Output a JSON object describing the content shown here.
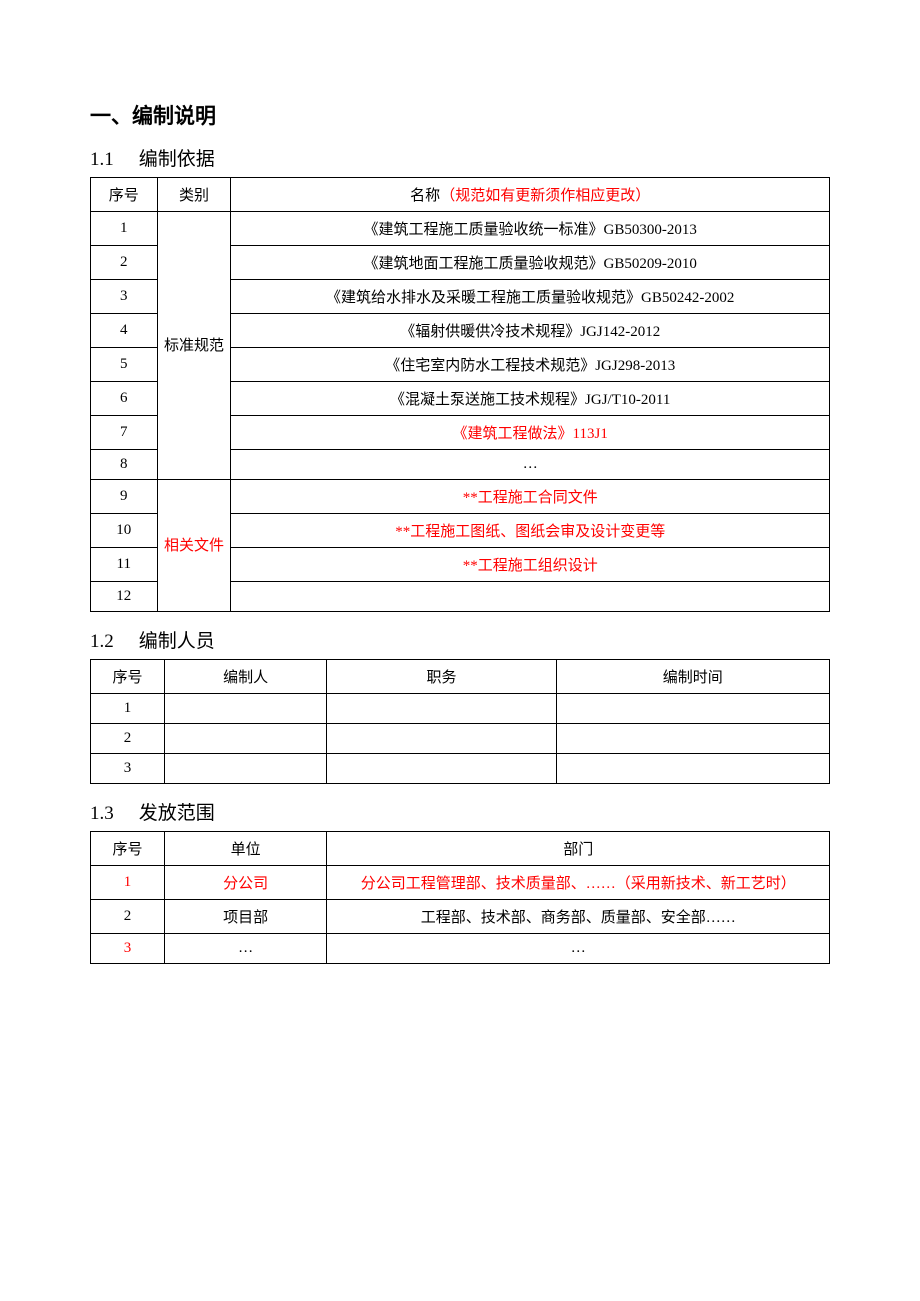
{
  "h1": "一、编制说明",
  "section1": {
    "num": "1.1",
    "title": "编制依据",
    "table": {
      "headers": {
        "seq": "序号",
        "cat": "类别",
        "name": "名称",
        "name_note": "（规范如有更新须作相应更改）"
      },
      "cat_labels": {
        "std": "标准规范",
        "doc": "相关文件"
      },
      "rows": [
        {
          "seq": "1",
          "name": "《建筑工程施工质量验收统一标准》GB50300-2013",
          "red": false
        },
        {
          "seq": "2",
          "name": "《建筑地面工程施工质量验收规范》GB50209-2010",
          "red": false
        },
        {
          "seq": "3",
          "name": "《建筑给水排水及采暖工程施工质量验收规范》GB50242-2002",
          "red": false
        },
        {
          "seq": "4",
          "name": "《辐射供暖供冷技术规程》JGJ142-2012",
          "red": false
        },
        {
          "seq": "5",
          "name": "《住宅室内防水工程技术规范》JGJ298-2013",
          "red": false
        },
        {
          "seq": "6",
          "name": "《混凝土泵送施工技术规程》JGJ/T10-2011",
          "red": false
        },
        {
          "seq": "7",
          "name": "《建筑工程做法》113J1",
          "red": true
        },
        {
          "seq": "8",
          "name": "…",
          "red": false
        },
        {
          "seq": "9",
          "name": "**工程施工合同文件",
          "red": true
        },
        {
          "seq": "10",
          "name": "**工程施工图纸、图纸会审及设计变更等",
          "red": true
        },
        {
          "seq": "11",
          "name": "**工程施工组织设计",
          "red": true
        },
        {
          "seq": "12",
          "name": "",
          "red": false
        }
      ]
    }
  },
  "section2": {
    "num": "1.2",
    "title": "编制人员",
    "table": {
      "headers": {
        "seq": "序号",
        "editor": "编制人",
        "post": "职务",
        "time": "编制时间"
      },
      "rows": [
        {
          "seq": "1",
          "editor": "",
          "post": "",
          "time": ""
        },
        {
          "seq": "2",
          "editor": "",
          "post": "",
          "time": ""
        },
        {
          "seq": "3",
          "editor": "",
          "post": "",
          "time": ""
        }
      ]
    }
  },
  "section3": {
    "num": "1.3",
    "title": "发放范围",
    "table": {
      "headers": {
        "seq": "序号",
        "unit": "单位",
        "dept": "部门"
      },
      "rows": [
        {
          "seq": "1",
          "unit": "分公司",
          "dept": "分公司工程管理部、技术质量部、……（采用新技术、新工艺时）",
          "red": true
        },
        {
          "seq": "2",
          "unit": "项目部",
          "dept": "工程部、技术部、商务部、质量部、安全部……",
          "red": false
        },
        {
          "seq": "3",
          "unit": "…",
          "dept": "…",
          "red": true
        }
      ]
    }
  }
}
